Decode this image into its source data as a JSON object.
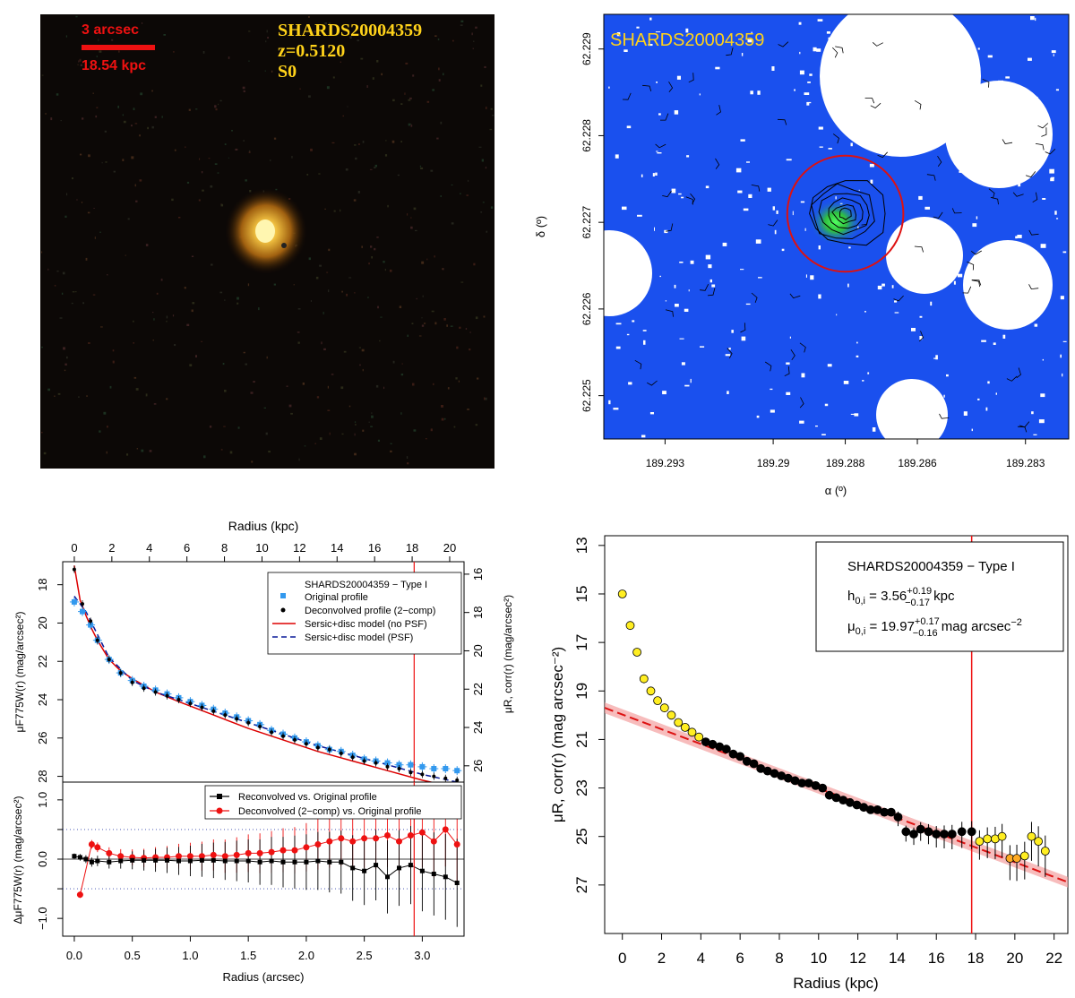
{
  "colors": {
    "scale_red": "#ee1111",
    "label_yellow": "#ffd21a",
    "map_blue": "#1a50ee",
    "aperture_red": "#dd1111",
    "orig_blue": "#3399ee",
    "model_red": "#dd0000",
    "model_psf_blue": "#0a1a99",
    "marker_yellow": "#ffee22",
    "marker_orange": "#ffaa22",
    "band_pink": "#f4a0a0"
  },
  "panel_a": {
    "scale_label": "3 arcsec",
    "scale_kpc": "18.54 kpc",
    "galaxy_id": "SHARDS20004359",
    "redshift": "z=0.5120",
    "morph_type": "S0"
  },
  "chart_data": [
    {
      "type": "scatter",
      "title": "SHARDS20004359",
      "xlabel": "α (º)",
      "ylabel": "δ (º)",
      "x_ticks": [
        "189.293",
        "189.29",
        "189.288",
        "189.286",
        "189.283"
      ],
      "y_ticks": [
        "62.225",
        "62.226",
        "62.227",
        "62.228",
        "62.229"
      ],
      "x_tick_values": [
        189.293,
        189.29,
        189.288,
        189.286,
        189.283
      ],
      "y_tick_values": [
        62.225,
        62.226,
        62.227,
        62.228,
        62.229
      ],
      "xlim": [
        189.2947,
        189.2818
      ],
      "ylim": [
        62.2245,
        62.2294
      ],
      "source_center": {
        "ra": 189.288,
        "dec": 62.2271
      },
      "aperture_radius_deg": 0.00067
    },
    {
      "type": "line",
      "title": "SHARDS20004359  − Type I",
      "top_axis_label": "Radius (kpc)",
      "top_ticks": [
        0,
        2,
        4,
        6,
        8,
        10,
        12,
        14,
        16,
        18,
        20
      ],
      "xlabel": "Radius (arcsec)",
      "x_ticks": [
        0.0,
        0.5,
        1.0,
        1.5,
        2.0,
        2.5,
        3.0
      ],
      "x_tick_labels": [
        "0.0",
        "0.5",
        "1.0",
        "1.5",
        "2.0",
        "2.5",
        "3.0"
      ],
      "xlim": [
        -0.1,
        3.36
      ],
      "ylabel_left": "μF775W(r) (mag/arcsec²)",
      "ylabel_right": "μR, corr(r) (mag/arcsec²)",
      "y_ticks_left": [
        18,
        20,
        22,
        24,
        26,
        28
      ],
      "y_ticks_right": [
        16,
        18,
        20,
        22,
        24,
        26
      ],
      "ylim_left": [
        16.8,
        28.3
      ],
      "limit_radius_arcsec": 2.93,
      "legend": [
        "SHARDS20004359  − Type I",
        "Original profile",
        "Deconvolved profile (2−comp)",
        "Sersic+disc model (no PSF)",
        "Sersic+disc model (PSF)"
      ],
      "series": [
        {
          "name": "Original profile",
          "r": [
            0.0,
            0.07,
            0.14,
            0.2,
            0.3,
            0.4,
            0.5,
            0.6,
            0.7,
            0.8,
            0.9,
            1.0,
            1.1,
            1.2,
            1.3,
            1.4,
            1.5,
            1.6,
            1.7,
            1.8,
            1.9,
            2.0,
            2.1,
            2.2,
            2.3,
            2.4,
            2.5,
            2.6,
            2.7,
            2.8,
            2.9,
            3.0,
            3.1,
            3.2,
            3.3
          ],
          "mu": [
            18.9,
            19.4,
            20.1,
            20.9,
            21.9,
            22.6,
            23.0,
            23.3,
            23.5,
            23.7,
            23.9,
            24.1,
            24.3,
            24.5,
            24.7,
            24.9,
            25.1,
            25.3,
            25.6,
            25.8,
            26.0,
            26.2,
            26.4,
            26.6,
            26.7,
            26.9,
            27.1,
            27.2,
            27.3,
            27.4,
            27.4,
            27.5,
            27.6,
            27.6,
            27.7
          ]
        },
        {
          "name": "Deconvolved profile (2−comp)",
          "r": [
            0.0,
            0.07,
            0.14,
            0.2,
            0.3,
            0.4,
            0.5,
            0.6,
            0.7,
            0.8,
            0.9,
            1.0,
            1.1,
            1.2,
            1.3,
            1.4,
            1.5,
            1.6,
            1.7,
            1.8,
            1.9,
            2.0,
            2.1,
            2.2,
            2.3,
            2.4,
            2.5,
            2.6,
            2.7,
            2.8,
            2.9,
            3.0,
            3.1,
            3.2,
            3.3
          ],
          "mu": [
            17.2,
            19.0,
            19.9,
            20.9,
            21.9,
            22.6,
            23.1,
            23.4,
            23.6,
            23.8,
            24.0,
            24.2,
            24.4,
            24.6,
            24.8,
            25.0,
            25.2,
            25.4,
            25.7,
            25.9,
            26.1,
            26.3,
            26.5,
            26.6,
            26.8,
            27.0,
            27.2,
            27.3,
            27.5,
            27.6,
            27.8,
            27.9,
            28.0,
            28.1,
            28.2
          ]
        },
        {
          "name": "Sersic+disc model (no PSF)",
          "r": [
            0.0,
            0.05,
            0.1,
            0.15,
            0.2,
            0.3,
            0.4,
            0.5,
            0.7,
            0.9,
            1.2,
            1.5,
            1.8,
            2.1,
            2.4,
            2.7,
            3.0,
            3.3
          ],
          "mu": [
            17.0,
            18.8,
            19.6,
            20.3,
            20.9,
            21.9,
            22.5,
            22.9,
            23.6,
            24.1,
            24.8,
            25.5,
            26.1,
            26.7,
            27.2,
            27.7,
            28.2,
            28.6
          ]
        },
        {
          "name": "Sersic+disc model (PSF)",
          "r": [
            0.0,
            0.1,
            0.2,
            0.3,
            0.5,
            0.7,
            0.9,
            1.2,
            1.5,
            1.8,
            2.1,
            2.4,
            2.7,
            3.0,
            3.3
          ],
          "mu": [
            18.6,
            19.4,
            20.6,
            21.8,
            23.0,
            23.6,
            24.0,
            24.6,
            25.2,
            25.8,
            26.4,
            26.9,
            27.4,
            27.9,
            28.3
          ]
        }
      ]
    },
    {
      "type": "scatter",
      "title": "",
      "xlabel": "Radius (arcsec)",
      "ylabel": "ΔμF775W(r) (mag/arcsec²)",
      "x_ticks": [
        0.0,
        0.5,
        1.0,
        1.5,
        2.0,
        2.5,
        3.0
      ],
      "xlim": [
        -0.1,
        3.36
      ],
      "y_ticks": [
        1.0,
        0.5,
        0.0,
        -0.5,
        -1.0
      ],
      "y_tick_labels": [
        "1.0",
        "",
        "0.0",
        "",
        "−1.0"
      ],
      "ylim": [
        -1.3,
        1.3
      ],
      "ref_lines": [
        0.5,
        0.0,
        -0.5
      ],
      "limit_radius_arcsec": 2.93,
      "legend": [
        "Reconvolved vs. Original profile",
        "Deconvolved (2−comp) vs. Original profile"
      ],
      "series": [
        {
          "name": "Reconvolved vs. Original profile",
          "r": [
            0.0,
            0.05,
            0.1,
            0.15,
            0.2,
            0.3,
            0.4,
            0.5,
            0.6,
            0.7,
            0.8,
            0.9,
            1.0,
            1.1,
            1.2,
            1.3,
            1.4,
            1.5,
            1.6,
            1.7,
            1.8,
            1.9,
            2.0,
            2.1,
            2.2,
            2.3,
            2.4,
            2.5,
            2.6,
            2.7,
            2.8,
            2.9,
            3.0,
            3.1,
            3.2,
            3.3
          ],
          "d": [
            0.05,
            0.03,
            0.0,
            -0.05,
            -0.03,
            -0.05,
            -0.03,
            -0.02,
            -0.02,
            -0.02,
            -0.02,
            -0.03,
            -0.03,
            -0.02,
            -0.02,
            -0.03,
            -0.03,
            -0.03,
            -0.05,
            -0.03,
            -0.05,
            -0.05,
            -0.05,
            -0.03,
            -0.05,
            -0.05,
            -0.15,
            -0.2,
            -0.1,
            -0.3,
            -0.15,
            -0.1,
            -0.2,
            -0.25,
            -0.3,
            -0.4
          ]
        },
        {
          "name": "Deconvolved (2−comp) vs. Original profile",
          "r": [
            0.05,
            0.15,
            0.2,
            0.3,
            0.4,
            0.5,
            0.6,
            0.7,
            0.8,
            0.9,
            1.0,
            1.1,
            1.2,
            1.3,
            1.4,
            1.5,
            1.6,
            1.7,
            1.8,
            1.9,
            2.0,
            2.1,
            2.2,
            2.3,
            2.4,
            2.5,
            2.6,
            2.7,
            2.8,
            2.9,
            3.0,
            3.1,
            3.2,
            3.3
          ],
          "d": [
            -0.6,
            0.25,
            0.2,
            0.1,
            0.05,
            0.03,
            0.02,
            0.03,
            0.03,
            0.05,
            0.05,
            0.05,
            0.07,
            0.05,
            0.07,
            0.1,
            0.1,
            0.12,
            0.15,
            0.15,
            0.2,
            0.25,
            0.3,
            0.35,
            0.3,
            0.35,
            0.35,
            0.4,
            0.3,
            0.4,
            0.45,
            0.3,
            0.5,
            0.25
          ]
        }
      ]
    },
    {
      "type": "scatter",
      "title": "SHARDS20004359  − Type I",
      "xlabel": "Radius (kpc)",
      "ylabel": "μR, corr(r) (mag arcsec⁻²)",
      "x_ticks": [
        0,
        2,
        4,
        6,
        8,
        10,
        12,
        14,
        16,
        18,
        20,
        22
      ],
      "xlim": [
        -0.9,
        22.7
      ],
      "y_ticks": [
        13,
        15,
        17,
        19,
        21,
        23,
        25,
        27
      ],
      "ylim": [
        12.6,
        29.0
      ],
      "limit_radius_kpc": 17.8,
      "annotations": {
        "scale_label": "h",
        "scale_sub": "0,i",
        "scale_value": " = 3.56",
        "scale_err_up": "+0.19",
        "scale_err_dn": "−0.17",
        "scale_unit": " kpc",
        "mu_label": "μ",
        "mu_sub": "0,i",
        "mu_value": " = 19.97",
        "mu_err_up": "+0.17",
        "mu_err_dn": "−0.16",
        "mu_unit": " mag arcsec",
        "mu_unit_exp": "−2"
      },
      "fit": {
        "intercept": 19.97,
        "slope_per_kpc": 0.3045,
        "x_range": [
          -0.9,
          22.7
        ]
      },
      "points": {
        "r_kpc": [
          0.0,
          0.4,
          0.75,
          1.1,
          1.45,
          1.8,
          2.15,
          2.5,
          2.85,
          3.2,
          3.55,
          3.9,
          4.25,
          4.6,
          4.95,
          5.3,
          5.65,
          6.0,
          6.35,
          6.7,
          7.05,
          7.4,
          7.75,
          8.1,
          8.45,
          8.8,
          9.15,
          9.5,
          9.85,
          10.2,
          10.55,
          10.9,
          11.25,
          11.6,
          11.95,
          12.3,
          12.65,
          13.0,
          13.35,
          13.7,
          14.05,
          14.45,
          14.85,
          15.2,
          15.6,
          16.0,
          16.4,
          16.8,
          17.3,
          17.8,
          18.2,
          18.6,
          19.0,
          19.35,
          19.75,
          20.1,
          20.5,
          20.85,
          21.2,
          21.55
        ],
        "mu": [
          15.0,
          16.3,
          17.4,
          18.5,
          19.0,
          19.4,
          19.7,
          20.0,
          20.3,
          20.5,
          20.7,
          20.9,
          21.1,
          21.2,
          21.3,
          21.4,
          21.6,
          21.7,
          21.9,
          22.0,
          22.2,
          22.3,
          22.4,
          22.5,
          22.6,
          22.7,
          22.8,
          22.8,
          22.9,
          23.0,
          23.3,
          23.4,
          23.5,
          23.6,
          23.7,
          23.8,
          23.9,
          23.9,
          24.0,
          24.0,
          24.2,
          24.8,
          24.9,
          24.7,
          24.8,
          24.9,
          24.9,
          24.9,
          24.8,
          24.8,
          25.2,
          25.1,
          25.1,
          25.0,
          25.9,
          25.9,
          25.8,
          25.0,
          25.2,
          25.6
        ],
        "category": [
          "y",
          "y",
          "y",
          "y",
          "y",
          "y",
          "y",
          "y",
          "y",
          "y",
          "y",
          "y",
          "b",
          "b",
          "b",
          "b",
          "b",
          "b",
          "b",
          "b",
          "b",
          "b",
          "b",
          "b",
          "b",
          "b",
          "b",
          "b",
          "b",
          "b",
          "b",
          "b",
          "b",
          "b",
          "b",
          "b",
          "b",
          "b",
          "b",
          "b",
          "b",
          "b",
          "b",
          "b",
          "b",
          "b",
          "b",
          "b",
          "b",
          "b",
          "y",
          "y",
          "y",
          "y",
          "o",
          "o",
          "y",
          "y",
          "y",
          "y"
        ]
      }
    }
  ]
}
